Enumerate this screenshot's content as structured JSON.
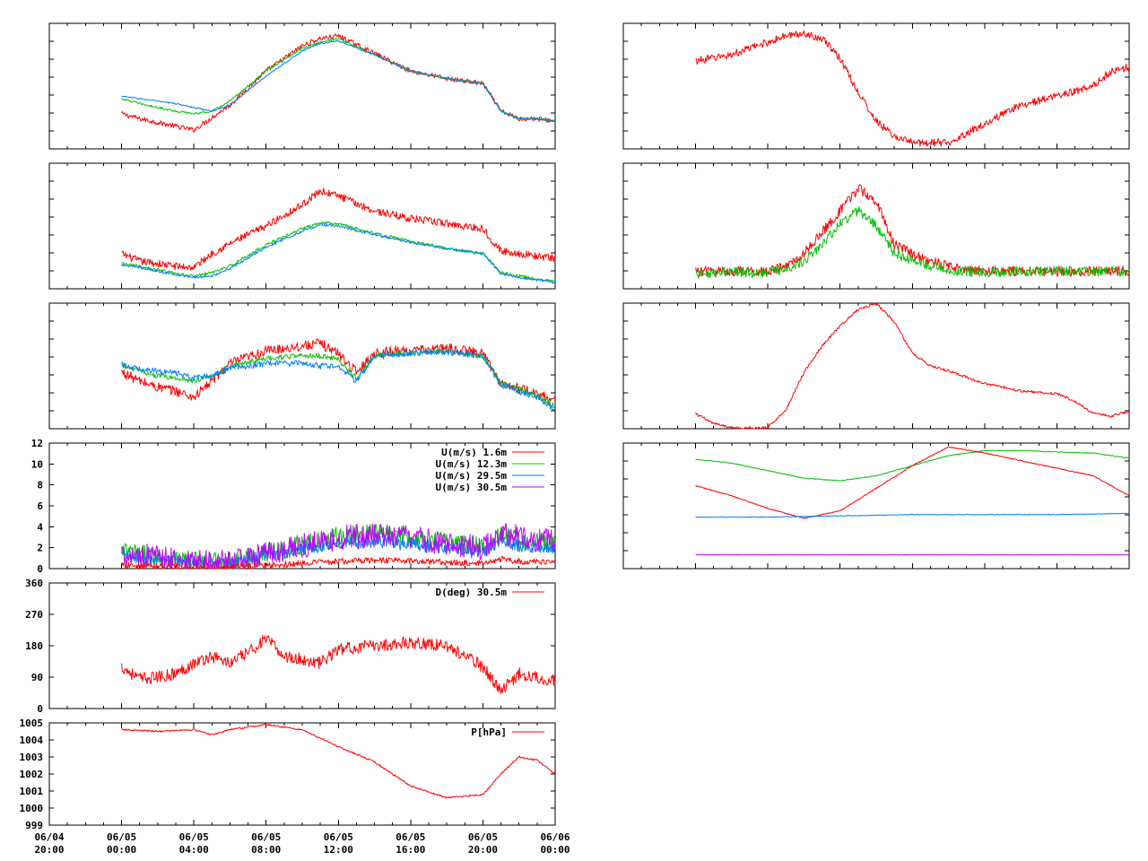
{
  "colors": {
    "red": "#ff0000",
    "green": "#00c000",
    "blue": "#0080ff",
    "magenta": "#c000ff",
    "frame": "#000000",
    "background": "#ffffff"
  },
  "x_axis": {
    "range_hours": [
      -4,
      24
    ],
    "ticks": [
      {
        "hour": -4,
        "line1": "06/04",
        "line2": "20:00"
      },
      {
        "hour": 0,
        "line1": "06/05",
        "line2": "00:00"
      },
      {
        "hour": 4,
        "line1": "06/05",
        "line2": "04:00"
      },
      {
        "hour": 8,
        "line1": "06/05",
        "line2": "08:00"
      },
      {
        "hour": 12,
        "line1": "06/05",
        "line2": "12:00"
      },
      {
        "hour": 16,
        "line1": "06/05",
        "line2": "16:00"
      },
      {
        "hour": 20,
        "line1": "06/05",
        "line2": "20:00"
      },
      {
        "hour": 24,
        "line1": "06/06",
        "line2": "00:00"
      }
    ]
  },
  "chart_data": [
    {
      "id": "L1",
      "type": "line",
      "ylim": [
        0,
        1
      ],
      "yticks": [],
      "legend": [],
      "series": [
        {
          "color": "red",
          "noise": 0.02,
          "x": [
            0,
            1,
            2,
            3,
            4,
            5,
            6,
            8,
            10,
            11,
            12,
            14,
            16,
            18,
            20,
            21,
            22,
            23,
            24
          ],
          "y": [
            0.28,
            0.24,
            0.21,
            0.18,
            0.15,
            0.25,
            0.35,
            0.62,
            0.82,
            0.88,
            0.9,
            0.76,
            0.62,
            0.56,
            0.52,
            0.3,
            0.24,
            0.24,
            0.22
          ]
        },
        {
          "color": "green",
          "noise": 0.008,
          "x": [
            0,
            1,
            2,
            3,
            4,
            5,
            6,
            8,
            10,
            11,
            12,
            14,
            16,
            18,
            20,
            21,
            22,
            23,
            24
          ],
          "y": [
            0.4,
            0.36,
            0.33,
            0.3,
            0.28,
            0.3,
            0.38,
            0.62,
            0.8,
            0.85,
            0.88,
            0.75,
            0.62,
            0.56,
            0.52,
            0.3,
            0.24,
            0.24,
            0.22
          ]
        },
        {
          "color": "blue",
          "noise": 0.006,
          "x": [
            0,
            1,
            2,
            3,
            4,
            5,
            6,
            8,
            10,
            11,
            12,
            14,
            16,
            18,
            20,
            21,
            22,
            23,
            24
          ],
          "y": [
            0.42,
            0.4,
            0.38,
            0.36,
            0.33,
            0.3,
            0.35,
            0.58,
            0.78,
            0.84,
            0.86,
            0.75,
            0.62,
            0.56,
            0.52,
            0.3,
            0.24,
            0.24,
            0.22
          ]
        }
      ]
    },
    {
      "id": "L2",
      "type": "line",
      "ylim": [
        0,
        1
      ],
      "yticks": [],
      "legend": [],
      "series": [
        {
          "color": "red",
          "noise": 0.03,
          "x": [
            0,
            1,
            2,
            3,
            4,
            5,
            6,
            8,
            10,
            11,
            12,
            14,
            16,
            18,
            20,
            21,
            22,
            23,
            24
          ],
          "y": [
            0.28,
            0.22,
            0.2,
            0.18,
            0.17,
            0.28,
            0.36,
            0.5,
            0.67,
            0.78,
            0.74,
            0.62,
            0.56,
            0.52,
            0.48,
            0.3,
            0.28,
            0.26,
            0.24
          ]
        },
        {
          "color": "green",
          "noise": 0.012,
          "x": [
            0,
            1,
            2,
            3,
            4,
            5,
            6,
            8,
            10,
            11,
            12,
            14,
            16,
            18,
            20,
            21,
            22,
            23,
            24
          ],
          "y": [
            0.2,
            0.18,
            0.15,
            0.12,
            0.1,
            0.13,
            0.18,
            0.35,
            0.48,
            0.53,
            0.52,
            0.44,
            0.38,
            0.32,
            0.28,
            0.13,
            0.1,
            0.08,
            0.06
          ]
        },
        {
          "color": "blue",
          "noise": 0.01,
          "x": [
            0,
            1,
            2,
            3,
            4,
            5,
            6,
            8,
            10,
            11,
            12,
            14,
            16,
            18,
            20,
            21,
            22,
            23,
            24
          ],
          "y": [
            0.19,
            0.17,
            0.14,
            0.11,
            0.09,
            0.1,
            0.16,
            0.33,
            0.46,
            0.51,
            0.5,
            0.43,
            0.37,
            0.32,
            0.28,
            0.12,
            0.09,
            0.07,
            0.05
          ]
        }
      ]
    },
    {
      "id": "L3",
      "type": "line",
      "ylim": [
        0,
        1
      ],
      "yticks": [],
      "legend": [],
      "series": [
        {
          "color": "red",
          "noise": 0.04,
          "x": [
            0,
            1,
            2,
            3,
            4,
            5,
            6,
            8,
            10,
            11,
            12,
            13,
            14,
            15,
            16,
            17,
            18,
            20,
            21,
            22,
            23,
            24
          ],
          "y": [
            0.45,
            0.38,
            0.33,
            0.3,
            0.25,
            0.38,
            0.52,
            0.62,
            0.66,
            0.68,
            0.6,
            0.45,
            0.6,
            0.62,
            0.62,
            0.63,
            0.64,
            0.6,
            0.36,
            0.32,
            0.28,
            0.22
          ]
        },
        {
          "color": "green",
          "noise": 0.02,
          "x": [
            0,
            1,
            2,
            3,
            4,
            5,
            6,
            8,
            10,
            11,
            12,
            13,
            14,
            15,
            16,
            17,
            18,
            20,
            21,
            22,
            23,
            24
          ],
          "y": [
            0.5,
            0.46,
            0.42,
            0.4,
            0.38,
            0.42,
            0.5,
            0.56,
            0.58,
            0.58,
            0.55,
            0.4,
            0.58,
            0.6,
            0.6,
            0.61,
            0.62,
            0.58,
            0.36,
            0.32,
            0.26,
            0.18
          ]
        },
        {
          "color": "blue",
          "noise": 0.025,
          "x": [
            0,
            1,
            2,
            3,
            4,
            5,
            6,
            8,
            10,
            11,
            12,
            13,
            14,
            15,
            16,
            17,
            18,
            20,
            21,
            22,
            23,
            24
          ],
          "y": [
            0.51,
            0.48,
            0.46,
            0.44,
            0.4,
            0.42,
            0.48,
            0.52,
            0.52,
            0.5,
            0.5,
            0.38,
            0.57,
            0.59,
            0.6,
            0.61,
            0.61,
            0.58,
            0.35,
            0.3,
            0.25,
            0.15
          ]
        }
      ]
    },
    {
      "id": "L4",
      "type": "line",
      "ylim": [
        0,
        12
      ],
      "yticks": [
        0,
        2,
        4,
        6,
        8,
        10,
        12
      ],
      "legend": [
        {
          "label": "U(m/s)  1.6m",
          "color": "red"
        },
        {
          "label": "U(m/s) 12.3m",
          "color": "green"
        },
        {
          "label": "U(m/s) 29.5m",
          "color": "blue"
        },
        {
          "label": "U(m/s) 30.5m",
          "color": "magenta"
        }
      ],
      "series": [
        {
          "color": "green",
          "noise": 1.0,
          "x": [
            0,
            2,
            4,
            6,
            8,
            10,
            12,
            14,
            16,
            18,
            20,
            21,
            22,
            24
          ],
          "y": [
            1.6,
            1.1,
            0.7,
            0.6,
            1.5,
            2.3,
            3.0,
            3.3,
            3.0,
            2.6,
            2.0,
            3.2,
            2.6,
            2.4
          ]
        },
        {
          "color": "blue",
          "noise": 0.6,
          "x": [
            0,
            2,
            4,
            6,
            8,
            10,
            12,
            14,
            16,
            18,
            20,
            21,
            22,
            24
          ],
          "y": [
            1.3,
            0.9,
            0.6,
            0.5,
            1.2,
            1.8,
            2.4,
            2.6,
            2.3,
            2.0,
            1.6,
            2.6,
            2.2,
            2.0
          ]
        },
        {
          "color": "magenta",
          "noise": 1.2,
          "x": [
            0,
            2,
            4,
            6,
            8,
            10,
            12,
            14,
            16,
            18,
            20,
            21,
            22,
            24
          ],
          "y": [
            1.5,
            1.0,
            0.6,
            0.6,
            1.4,
            2.2,
            2.9,
            3.2,
            2.9,
            2.5,
            1.9,
            3.6,
            2.9,
            2.6
          ]
        },
        {
          "color": "red",
          "noise": 0.3,
          "x": [
            0,
            2,
            4,
            6,
            8,
            10,
            12,
            14,
            16,
            18,
            20,
            21,
            22,
            24
          ],
          "y": [
            0.3,
            0.2,
            0.1,
            0.1,
            0.3,
            0.5,
            0.7,
            0.8,
            0.7,
            0.6,
            0.5,
            0.9,
            0.7,
            0.6
          ]
        }
      ]
    },
    {
      "id": "L5",
      "type": "line",
      "ylim": [
        0,
        360
      ],
      "yticks": [
        0,
        90,
        180,
        270,
        360
      ],
      "legend": [
        {
          "label": "D(deg)  30.5m",
          "color": "red"
        }
      ],
      "series": [
        {
          "color": "red",
          "noise": 18,
          "x": [
            0,
            1,
            2,
            3,
            4,
            5,
            6,
            7,
            8,
            9,
            10,
            11,
            12,
            14,
            16,
            18,
            19,
            20,
            21,
            22,
            23,
            24
          ],
          "y": [
            120,
            85,
            90,
            100,
            130,
            150,
            130,
            160,
            200,
            150,
            140,
            130,
            170,
            180,
            190,
            180,
            150,
            120,
            50,
            100,
            90,
            80
          ]
        }
      ]
    },
    {
      "id": "L6",
      "type": "line",
      "ylim": [
        999,
        1005
      ],
      "yticks": [
        999,
        1000,
        1001,
        1002,
        1003,
        1004,
        1005
      ],
      "legend": [
        {
          "label": "P[hPa]",
          "color": "red"
        }
      ],
      "series": [
        {
          "color": "red",
          "noise": 0.05,
          "x": [
            0,
            2,
            4,
            5,
            6,
            8,
            10,
            12,
            14,
            16,
            18,
            20,
            21,
            22,
            23,
            24
          ],
          "y": [
            1004.6,
            1004.5,
            1004.6,
            1004.3,
            1004.6,
            1004.9,
            1004.6,
            1003.6,
            1002.7,
            1001.3,
            1000.6,
            1000.8,
            1002.0,
            1003.0,
            1002.8,
            1002.0
          ]
        }
      ]
    },
    {
      "id": "R1",
      "type": "line",
      "ylim": [
        0,
        1
      ],
      "yticks": [],
      "legend": [],
      "series": [
        {
          "color": "red",
          "noise": 0.03,
          "x": [
            0,
            2,
            4,
            5,
            6,
            7,
            8,
            9,
            10,
            11,
            12,
            14,
            16,
            18,
            20,
            22,
            23,
            24
          ],
          "y": [
            0.7,
            0.75,
            0.85,
            0.9,
            0.92,
            0.88,
            0.72,
            0.45,
            0.22,
            0.1,
            0.05,
            0.05,
            0.2,
            0.35,
            0.42,
            0.5,
            0.62,
            0.65
          ]
        }
      ]
    },
    {
      "id": "R2",
      "type": "line",
      "ylim": [
        0,
        1
      ],
      "yticks": [],
      "legend": [],
      "series": [
        {
          "color": "red",
          "noise": 0.04,
          "x": [
            0,
            2,
            4,
            5,
            6,
            7,
            8,
            9,
            10,
            11,
            12,
            13,
            14,
            16,
            18,
            20,
            22,
            24
          ],
          "y": [
            0.14,
            0.14,
            0.14,
            0.18,
            0.28,
            0.45,
            0.62,
            0.8,
            0.7,
            0.35,
            0.28,
            0.22,
            0.18,
            0.14,
            0.14,
            0.14,
            0.14,
            0.14
          ]
        },
        {
          "color": "green",
          "noise": 0.04,
          "x": [
            0,
            2,
            4,
            5,
            6,
            7,
            8,
            9,
            10,
            11,
            12,
            13,
            14,
            16,
            18,
            20,
            22,
            24
          ],
          "y": [
            0.12,
            0.13,
            0.13,
            0.16,
            0.22,
            0.35,
            0.52,
            0.62,
            0.5,
            0.28,
            0.22,
            0.18,
            0.15,
            0.13,
            0.14,
            0.14,
            0.14,
            0.14
          ]
        }
      ]
    },
    {
      "id": "R3",
      "type": "line",
      "ylim": [
        0,
        1
      ],
      "yticks": [],
      "legend": [],
      "series": [
        {
          "color": "red",
          "noise": 0.01,
          "x": [
            0,
            1,
            2,
            3,
            4,
            5,
            6,
            7,
            8,
            9,
            10,
            11,
            12,
            13,
            14,
            16,
            18,
            20,
            21,
            22,
            23,
            24
          ],
          "y": [
            0.12,
            0.04,
            0.01,
            0.0,
            0.01,
            0.15,
            0.45,
            0.66,
            0.82,
            0.95,
            1.0,
            0.85,
            0.6,
            0.5,
            0.46,
            0.36,
            0.3,
            0.28,
            0.22,
            0.12,
            0.1,
            0.14
          ]
        }
      ]
    },
    {
      "id": "R4",
      "type": "line",
      "ylim": [
        0,
        1
      ],
      "yticks": [],
      "legend": [],
      "series": [
        {
          "color": "green",
          "noise": 0.003,
          "x": [
            0,
            2,
            4,
            6,
            8,
            10,
            12,
            14,
            16,
            18,
            20,
            22,
            24
          ],
          "y": [
            0.87,
            0.84,
            0.78,
            0.72,
            0.7,
            0.74,
            0.82,
            0.9,
            0.94,
            0.94,
            0.93,
            0.92,
            0.88
          ]
        },
        {
          "color": "red",
          "noise": 0.004,
          "x": [
            0,
            2,
            4,
            6,
            8,
            10,
            12,
            14,
            16,
            18,
            20,
            22,
            24
          ],
          "y": [
            0.66,
            0.58,
            0.48,
            0.4,
            0.46,
            0.64,
            0.82,
            0.97,
            0.92,
            0.86,
            0.8,
            0.74,
            0.58
          ]
        },
        {
          "color": "blue",
          "noise": 0.003,
          "x": [
            0,
            4,
            8,
            12,
            16,
            20,
            24
          ],
          "y": [
            0.41,
            0.41,
            0.42,
            0.43,
            0.43,
            0.43,
            0.44
          ]
        },
        {
          "color": "magenta",
          "noise": 0.002,
          "x": [
            0,
            8,
            16,
            24
          ],
          "y": [
            0.11,
            0.11,
            0.11,
            0.11
          ]
        }
      ]
    }
  ]
}
